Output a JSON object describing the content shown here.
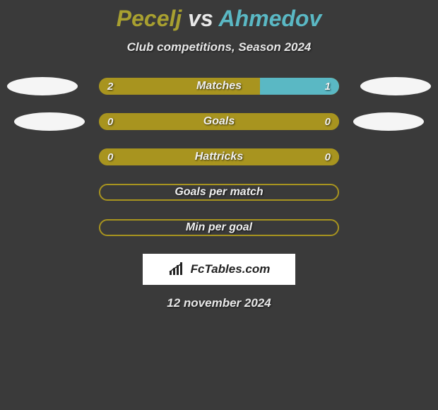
{
  "title": {
    "player1": "Pecelj",
    "vs": "vs",
    "player2": "Ahmedov"
  },
  "subtitle": "Club competitions, Season 2024",
  "colors": {
    "player1": "#a8941f",
    "player2": "#5ab8c4",
    "background": "#3a3a3a",
    "text": "#e8e8e8",
    "ellipse": "#f5f5f5"
  },
  "stats": [
    {
      "label": "Matches",
      "left_value": "2",
      "right_value": "1",
      "left_pct": 67,
      "right_pct": 33,
      "show_ellipses": true,
      "ellipse_offset": 0
    },
    {
      "label": "Goals",
      "left_value": "0",
      "right_value": "0",
      "left_pct": 100,
      "right_pct": 0,
      "show_ellipses": true,
      "ellipse_offset": 1
    },
    {
      "label": "Hattricks",
      "left_value": "0",
      "right_value": "0",
      "left_pct": 100,
      "right_pct": 0,
      "show_ellipses": false
    },
    {
      "label": "Goals per match",
      "left_value": "",
      "right_value": "",
      "outline": true,
      "show_ellipses": false
    },
    {
      "label": "Min per goal",
      "left_value": "",
      "right_value": "",
      "outline": true,
      "show_ellipses": false
    }
  ],
  "logo_text": "FcTables.com",
  "date": "12 november 2024"
}
